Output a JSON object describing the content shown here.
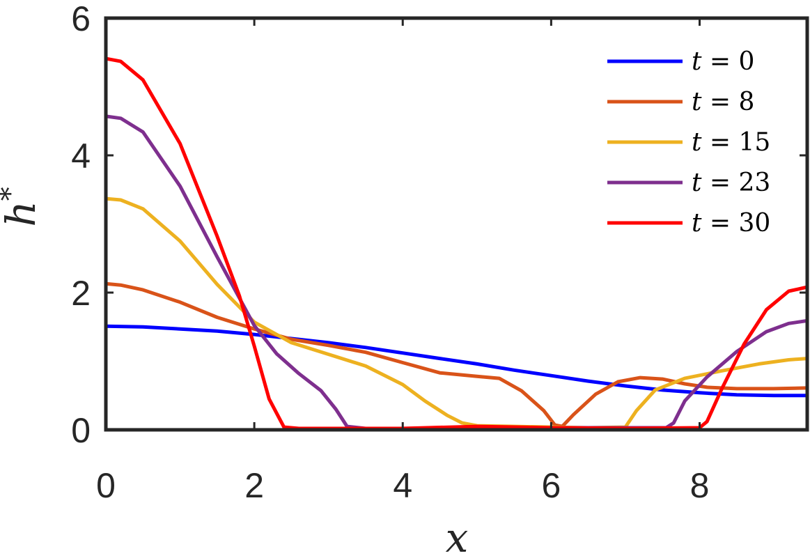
{
  "chart_data": {
    "type": "line",
    "xlabel": "x",
    "ylabel": "h*",
    "xlim": [
      0,
      9.45
    ],
    "ylim": [
      0,
      6
    ],
    "xticks": [
      0,
      2,
      4,
      6,
      8
    ],
    "yticks": [
      0,
      2,
      4,
      6
    ],
    "grid": false,
    "legend_position": "top-right",
    "series": [
      {
        "name": "t = 0",
        "legend_var": "t",
        "legend_value": "0",
        "color": "#0000ff",
        "points": [
          [
            0,
            1.51
          ],
          [
            0.5,
            1.5
          ],
          [
            1,
            1.47
          ],
          [
            1.5,
            1.44
          ],
          [
            2,
            1.39
          ],
          [
            2.5,
            1.33
          ],
          [
            3,
            1.27
          ],
          [
            3.5,
            1.2
          ],
          [
            4,
            1.12
          ],
          [
            4.5,
            1.04
          ],
          [
            5,
            0.96
          ],
          [
            5.5,
            0.87
          ],
          [
            6,
            0.79
          ],
          [
            6.5,
            0.71
          ],
          [
            7,
            0.64
          ],
          [
            7.5,
            0.58
          ],
          [
            8,
            0.54
          ],
          [
            8.5,
            0.51
          ],
          [
            9,
            0.5
          ],
          [
            9.45,
            0.5
          ]
        ]
      },
      {
        "name": "t = 8",
        "legend_var": "t",
        "legend_value": "8",
        "color": "#d95319",
        "points": [
          [
            0,
            2.13
          ],
          [
            0.2,
            2.11
          ],
          [
            0.5,
            2.04
          ],
          [
            1,
            1.86
          ],
          [
            1.5,
            1.64
          ],
          [
            2,
            1.47
          ],
          [
            2.5,
            1.32
          ],
          [
            3,
            1.23
          ],
          [
            3.5,
            1.13
          ],
          [
            4,
            0.98
          ],
          [
            4.5,
            0.83
          ],
          [
            5,
            0.78
          ],
          [
            5.3,
            0.75
          ],
          [
            5.6,
            0.57
          ],
          [
            5.9,
            0.28
          ],
          [
            6.05,
            0.07
          ],
          [
            6.15,
            0.05
          ],
          [
            6.3,
            0.22
          ],
          [
            6.6,
            0.52
          ],
          [
            6.9,
            0.7
          ],
          [
            7.2,
            0.76
          ],
          [
            7.5,
            0.74
          ],
          [
            7.8,
            0.67
          ],
          [
            8.1,
            0.62
          ],
          [
            8.5,
            0.6
          ],
          [
            9,
            0.6
          ],
          [
            9.45,
            0.61
          ]
        ]
      },
      {
        "name": "t = 15",
        "legend_var": "t",
        "legend_value": "15",
        "color": "#edb120",
        "points": [
          [
            0,
            3.37
          ],
          [
            0.2,
            3.35
          ],
          [
            0.5,
            3.22
          ],
          [
            1,
            2.75
          ],
          [
            1.5,
            2.12
          ],
          [
            2,
            1.57
          ],
          [
            2.5,
            1.27
          ],
          [
            3,
            1.1
          ],
          [
            3.5,
            0.93
          ],
          [
            4,
            0.66
          ],
          [
            4.3,
            0.42
          ],
          [
            4.6,
            0.21
          ],
          [
            4.8,
            0.1
          ],
          [
            5,
            0.06
          ],
          [
            5.5,
            0.05
          ],
          [
            6,
            0.04
          ],
          [
            6.5,
            0.03
          ],
          [
            7.0,
            0.04
          ],
          [
            7.15,
            0.28
          ],
          [
            7.4,
            0.58
          ],
          [
            7.8,
            0.75
          ],
          [
            8.3,
            0.86
          ],
          [
            8.8,
            0.96
          ],
          [
            9.2,
            1.02
          ],
          [
            9.45,
            1.04
          ]
        ]
      },
      {
        "name": "t = 23",
        "legend_var": "t",
        "legend_value": "23",
        "color": "#7e2f8e",
        "points": [
          [
            0,
            4.57
          ],
          [
            0.2,
            4.54
          ],
          [
            0.5,
            4.34
          ],
          [
            1,
            3.55
          ],
          [
            1.5,
            2.52
          ],
          [
            2,
            1.52
          ],
          [
            2.3,
            1.11
          ],
          [
            2.6,
            0.82
          ],
          [
            2.9,
            0.57
          ],
          [
            3.1,
            0.3
          ],
          [
            3.25,
            0.05
          ],
          [
            3.5,
            0.02
          ],
          [
            4,
            0.02
          ],
          [
            5,
            0.03
          ],
          [
            6,
            0.03
          ],
          [
            7,
            0.03
          ],
          [
            7.55,
            0.03
          ],
          [
            7.65,
            0.1
          ],
          [
            7.8,
            0.42
          ],
          [
            8.1,
            0.77
          ],
          [
            8.5,
            1.14
          ],
          [
            8.9,
            1.43
          ],
          [
            9.2,
            1.55
          ],
          [
            9.45,
            1.59
          ]
        ]
      },
      {
        "name": "t = 30",
        "legend_var": "t",
        "legend_value": "30",
        "color": "#ff0000",
        "points": [
          [
            0,
            5.41
          ],
          [
            0.2,
            5.37
          ],
          [
            0.5,
            5.1
          ],
          [
            1,
            4.17
          ],
          [
            1.5,
            2.82
          ],
          [
            1.8,
            1.95
          ],
          [
            2.0,
            1.22
          ],
          [
            2.2,
            0.45
          ],
          [
            2.4,
            0.04
          ],
          [
            2.6,
            0.02
          ],
          [
            3,
            0.02
          ],
          [
            4,
            0.02
          ],
          [
            5,
            0.05
          ],
          [
            6,
            0.03
          ],
          [
            7,
            0.02
          ],
          [
            8.0,
            0.03
          ],
          [
            8.1,
            0.12
          ],
          [
            8.3,
            0.6
          ],
          [
            8.6,
            1.25
          ],
          [
            8.9,
            1.75
          ],
          [
            9.2,
            2.02
          ],
          [
            9.45,
            2.08
          ]
        ]
      }
    ]
  }
}
